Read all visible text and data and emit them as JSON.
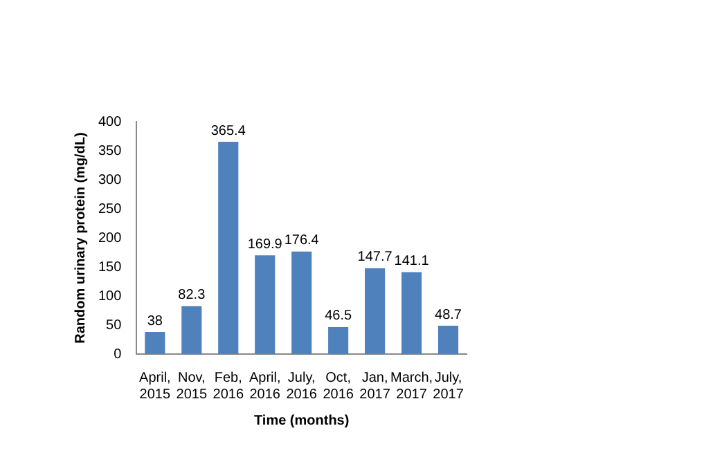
{
  "chart_data": {
    "type": "bar",
    "xlabel": "Time (months)",
    "ylabel": "Random urinary protein (mg/dL)",
    "categories": [
      "April, 2015",
      "Nov, 2015",
      "Feb, 2016",
      "April, 2016",
      "July, 2016",
      "Oct, 2016",
      "Jan, 2017",
      "March, 2017",
      "July, 2017"
    ],
    "values": [
      38,
      82.3,
      365.4,
      169.9,
      176.4,
      46.5,
      147.7,
      141.1,
      48.7
    ],
    "color": "#4f81bd",
    "ylim": [
      0,
      400
    ],
    "yticks": [
      0,
      50,
      100,
      150,
      200,
      250,
      300,
      350,
      400
    ],
    "data_labels": true,
    "grid": false
  }
}
